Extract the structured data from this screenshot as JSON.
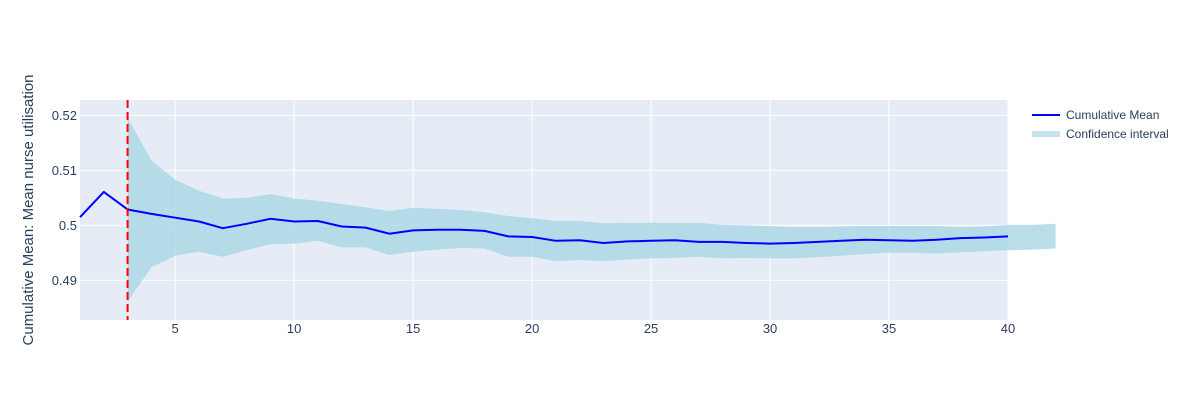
{
  "chart_data": {
    "type": "line",
    "title": "",
    "xlabel": "",
    "ylabel": "Cumulative Mean: Mean nurse utilisation",
    "xlim": [
      1,
      40
    ],
    "ylim": [
      0.4828,
      0.5228
    ],
    "x_ticks": [
      5,
      10,
      15,
      20,
      25,
      30,
      35,
      40
    ],
    "y_ticks": [
      0.49,
      0.5,
      0.51,
      0.52
    ],
    "y_tick_labels": [
      "0.49",
      "0.5",
      "0.51",
      "0.52"
    ],
    "grid": true,
    "legend_position": "top-right",
    "x": [
      1,
      2,
      3,
      4,
      5,
      6,
      7,
      8,
      9,
      10,
      11,
      12,
      13,
      14,
      15,
      16,
      17,
      18,
      19,
      20,
      21,
      22,
      23,
      24,
      25,
      26,
      27,
      28,
      29,
      30,
      31,
      32,
      33,
      34,
      35,
      36,
      37,
      38,
      39,
      40
    ],
    "series": [
      {
        "name": "Cumulative Mean",
        "color": "#0000ff",
        "values": [
          0.5015,
          0.5061,
          0.5029,
          0.5021,
          0.5014,
          0.5007,
          0.4995,
          0.5003,
          0.5012,
          0.5007,
          0.5008,
          0.4998,
          0.4996,
          0.4985,
          0.4991,
          0.4992,
          0.4992,
          0.499,
          0.498,
          0.4979,
          0.4972,
          0.4973,
          0.4968,
          0.4971,
          0.4972,
          0.4973,
          0.497,
          0.497,
          0.4968,
          0.4967,
          0.4968,
          0.497,
          0.4972,
          0.4974,
          0.4973,
          0.4972,
          0.4974,
          0.4977,
          0.4978,
          0.498
        ]
      },
      {
        "name": "Confidence interval",
        "color": "#add8e6",
        "x_start": 3,
        "upper": [
          0.5196,
          0.5118,
          0.5083,
          0.5063,
          0.5049,
          0.505,
          0.5057,
          0.5049,
          0.5045,
          0.5039,
          0.5033,
          0.5026,
          0.5032,
          0.503,
          0.5028,
          0.5024,
          0.5017,
          0.5013,
          0.5008,
          0.5008,
          0.5004,
          0.5005,
          0.5005,
          0.5005,
          0.5005,
          0.5001,
          0.5,
          0.4999,
          0.4997,
          0.4997,
          0.4998,
          0.4999,
          0.4999,
          0.4999,
          0.4999,
          0.4997,
          0.4998,
          0.5001,
          0.5001,
          0.5003
        ],
        "lower": [
          0.4861,
          0.4924,
          0.4945,
          0.4952,
          0.4943,
          0.4955,
          0.4966,
          0.4967,
          0.4972,
          0.496,
          0.496,
          0.4946,
          0.4952,
          0.4956,
          0.4959,
          0.4958,
          0.4943,
          0.4943,
          0.4935,
          0.4937,
          0.4935,
          0.4938,
          0.494,
          0.4941,
          0.4943,
          0.494,
          0.4941,
          0.494,
          0.494,
          0.4942,
          0.4945,
          0.4948,
          0.495,
          0.495,
          0.4949,
          0.4951,
          0.4953,
          0.4955,
          0.4956,
          0.4958
        ]
      }
    ],
    "annotations": [
      {
        "type": "vertical-line",
        "x": 3,
        "color": "#ff0000",
        "style": "dashed"
      }
    ]
  }
}
